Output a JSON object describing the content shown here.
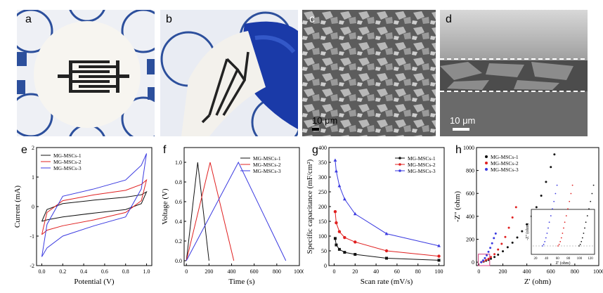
{
  "panel_labels": {
    "a": "a",
    "b": "b",
    "c": "c",
    "d": "d",
    "e": "e",
    "f": "f",
    "g": "g",
    "h": "h"
  },
  "photos": {
    "c_scale": "10 μm",
    "d_scale": "10 μm"
  },
  "colors": {
    "black": "#111111",
    "red": "#e02020",
    "blue": "#3a3ae0",
    "purple": "#7a6ad8"
  },
  "chart_data": [
    {
      "type": "line",
      "panel": "e",
      "xlabel": "Potential (V)",
      "ylabel": "Current (mA)",
      "xlim": [
        -0.05,
        1.05
      ],
      "ylim": [
        -2,
        2
      ],
      "xticks": [
        "0.0",
        "0.2",
        "0.4",
        "0.6",
        "0.8",
        "1.0"
      ],
      "yticks": [
        "-2",
        "-1",
        "0",
        "1",
        "2"
      ],
      "legend": "top-left",
      "series": [
        {
          "name": "MG-MSCs-1",
          "color": "#111111",
          "loop": [
            [
              0,
              -0.5
            ],
            [
              0.05,
              -0.1
            ],
            [
              0.2,
              0.1
            ],
            [
              0.5,
              0.22
            ],
            [
              0.8,
              0.32
            ],
            [
              0.95,
              0.4
            ],
            [
              1.0,
              0.5
            ],
            [
              0.95,
              0.1
            ],
            [
              0.8,
              -0.1
            ],
            [
              0.5,
              -0.22
            ],
            [
              0.2,
              -0.35
            ],
            [
              0.05,
              -0.45
            ],
            [
              0,
              -0.5
            ]
          ]
        },
        {
          "name": "MG-MSCs-2",
          "color": "#e02020",
          "loop": [
            [
              0,
              -0.95
            ],
            [
              0.05,
              -0.2
            ],
            [
              0.2,
              0.2
            ],
            [
              0.5,
              0.4
            ],
            [
              0.8,
              0.55
            ],
            [
              0.95,
              0.75
            ],
            [
              1.0,
              0.9
            ],
            [
              0.95,
              0.2
            ],
            [
              0.8,
              -0.2
            ],
            [
              0.5,
              -0.45
            ],
            [
              0.2,
              -0.65
            ],
            [
              0.05,
              -0.8
            ],
            [
              0,
              -0.95
            ]
          ]
        },
        {
          "name": "MG-MSCs-3",
          "color": "#3a3ae0",
          "loop": [
            [
              0,
              -1.7
            ],
            [
              0.05,
              -0.6
            ],
            [
              0.2,
              0.35
            ],
            [
              0.5,
              0.6
            ],
            [
              0.8,
              0.9
            ],
            [
              0.95,
              1.4
            ],
            [
              1.0,
              1.8
            ],
            [
              0.95,
              0.6
            ],
            [
              0.8,
              -0.35
            ],
            [
              0.5,
              -0.65
            ],
            [
              0.2,
              -1.0
            ],
            [
              0.05,
              -1.4
            ],
            [
              0,
              -1.7
            ]
          ]
        }
      ]
    },
    {
      "type": "line",
      "panel": "f",
      "xlabel": "Time (s)",
      "ylabel": "Voltage (V)",
      "xlim": [
        -20,
        1000
      ],
      "ylim": [
        -0.05,
        1.15
      ],
      "xticks": [
        "0",
        "200",
        "400",
        "600",
        "800",
        "1000"
      ],
      "yticks": [
        "0.0",
        "0.2",
        "0.4",
        "0.6",
        "0.8",
        "1.0"
      ],
      "legend": "top-right",
      "series": [
        {
          "name": "MG-MSCs-1",
          "color": "#111111",
          "x": [
            0,
            100,
            200
          ],
          "y": [
            0,
            1.0,
            0
          ]
        },
        {
          "name": "MG-MSCs-2",
          "color": "#e02020",
          "x": [
            0,
            210,
            420
          ],
          "y": [
            0,
            1.0,
            0
          ]
        },
        {
          "name": "MG-MSCs-3",
          "color": "#3a3ae0",
          "x": [
            0,
            460,
            880
          ],
          "y": [
            0,
            1.0,
            0
          ]
        }
      ]
    },
    {
      "type": "line",
      "panel": "g",
      "xlabel": "Scan rate (mV/s)",
      "ylabel": "Specific capacitance (mF/cm²)",
      "xlim": [
        -5,
        105
      ],
      "ylim": [
        0,
        400
      ],
      "xticks": [
        "0",
        "20",
        "40",
        "60",
        "80",
        "100"
      ],
      "yticks": [
        "0",
        "50",
        "100",
        "150",
        "200",
        "250",
        "300",
        "350",
        "400"
      ],
      "legend": "top-right",
      "x": [
        1,
        2,
        5,
        10,
        20,
        50,
        100
      ],
      "series": [
        {
          "name": "MG-MSCs-1",
          "color": "#111111",
          "marker": "square",
          "values": [
            92,
            70,
            55,
            45,
            38,
            25,
            18
          ]
        },
        {
          "name": "MG-MSCs-2",
          "color": "#e02020",
          "marker": "circle",
          "values": [
            183,
            145,
            115,
            95,
            80,
            50,
            32
          ]
        },
        {
          "name": "MG-MSCs-3",
          "color": "#3a3ae0",
          "marker": "triangle",
          "values": [
            357,
            320,
            270,
            225,
            175,
            108,
            67
          ]
        }
      ]
    },
    {
      "type": "scatter",
      "panel": "h",
      "xlabel": "Z' (ohm)",
      "ylabel": "-Z'' (ohm)",
      "xlim": [
        -20,
        1000
      ],
      "ylim": [
        -30,
        1000
      ],
      "xticks": [
        "0",
        "200",
        "400",
        "600",
        "800",
        "1000"
      ],
      "yticks": [
        "0",
        "200",
        "400",
        "600",
        "800",
        "1000"
      ],
      "legend": "top-left",
      "series": [
        {
          "name": "MG-MSCs-1",
          "color": "#111111",
          "x": [
            20,
            40,
            60,
            80,
            100,
            130,
            160,
            200,
            240,
            280,
            320,
            360,
            400,
            440,
            480,
            520,
            560,
            600,
            630
          ],
          "y": [
            0,
            5,
            12,
            20,
            30,
            45,
            65,
            95,
            130,
            170,
            215,
            270,
            330,
            400,
            480,
            580,
            700,
            830,
            940
          ]
        },
        {
          "name": "MG-MSCs-2",
          "color": "#e02020",
          "x": [
            20,
            40,
            60,
            80,
            100,
            130,
            160,
            190,
            220,
            250,
            280,
            310
          ],
          "y": [
            0,
            8,
            18,
            30,
            45,
            70,
            110,
            160,
            220,
            300,
            390,
            480
          ]
        },
        {
          "name": "MG-MSCs-3",
          "color": "#3a3ae0",
          "x": [
            20,
            35,
            50,
            65,
            80,
            95,
            110,
            125,
            140
          ],
          "y": [
            0,
            15,
            35,
            60,
            90,
            125,
            165,
            210,
            250
          ]
        }
      ],
      "inset": {
        "xlabel": "Z' (ohm)",
        "ylabel": "-Z'' (ohm)",
        "xticks": [
          "20",
          "40",
          "60",
          "80",
          "100",
          "120"
        ]
      }
    }
  ]
}
